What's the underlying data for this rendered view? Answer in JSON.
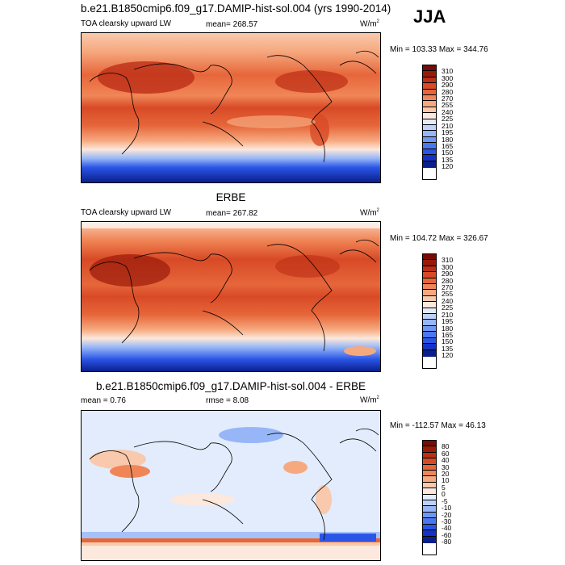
{
  "season": "JJA",
  "colors": {
    "abs": [
      "#0a1f8c",
      "#1432c8",
      "#2a55e6",
      "#4a78f0",
      "#6f98f4",
      "#96b6f7",
      "#bfd3fa",
      "#e2ecfc",
      "#fce8dc",
      "#f9c9ad",
      "#f6a97f",
      "#f08657",
      "#e6663a",
      "#d84a26",
      "#bd2e16",
      "#9a1a0a",
      "#7a0a04"
    ],
    "diff": [
      "#0a1f8c",
      "#1432c8",
      "#2a55e6",
      "#4a78f0",
      "#6f98f4",
      "#96b6f7",
      "#bfd3fa",
      "#e2ecfc",
      "#fce8dc",
      "#f9c9ad",
      "#f6a97f",
      "#f08657",
      "#e6663a",
      "#d84a26",
      "#bd2e16",
      "#9a1a0a",
      "#7a0a04"
    ]
  },
  "panels": [
    {
      "title": "b.e21.B1850cmip6.f09_g17.DAMIP-hist-sol.004 (yrs 1990-2014)",
      "variable": "TOA clearsky upward LW",
      "stat": "mean= 268.57",
      "units": "W/m",
      "units_sup": "2",
      "minmax": "Min = 103.33 Max = 344.76",
      "levels": [
        "310",
        "300",
        "290",
        "280",
        "270",
        "255",
        "240",
        "225",
        "210",
        "195",
        "180",
        "165",
        "150",
        "135",
        "120"
      ]
    },
    {
      "title": "ERBE",
      "variable": "TOA clearsky upward LW",
      "stat": "mean= 267.82",
      "units": "W/m",
      "units_sup": "2",
      "minmax": "Min = 104.72 Max = 326.67",
      "levels": [
        "310",
        "300",
        "290",
        "280",
        "270",
        "255",
        "240",
        "225",
        "210",
        "195",
        "180",
        "165",
        "150",
        "135",
        "120"
      ]
    },
    {
      "title": "b.e21.B1850cmip6.f09_g17.DAMIP-hist-sol.004 - ERBE",
      "variable": "mean =  0.76",
      "stat": "rmse =  8.08",
      "units": "W/m",
      "units_sup": "2",
      "minmax": "Min = -112.57 Max =  46.13",
      "levels": [
        "80",
        "60",
        "40",
        "30",
        "20",
        "10",
        "5",
        "0",
        "-5",
        "-10",
        "-20",
        "-30",
        "-40",
        "-60",
        "-80"
      ]
    }
  ]
}
